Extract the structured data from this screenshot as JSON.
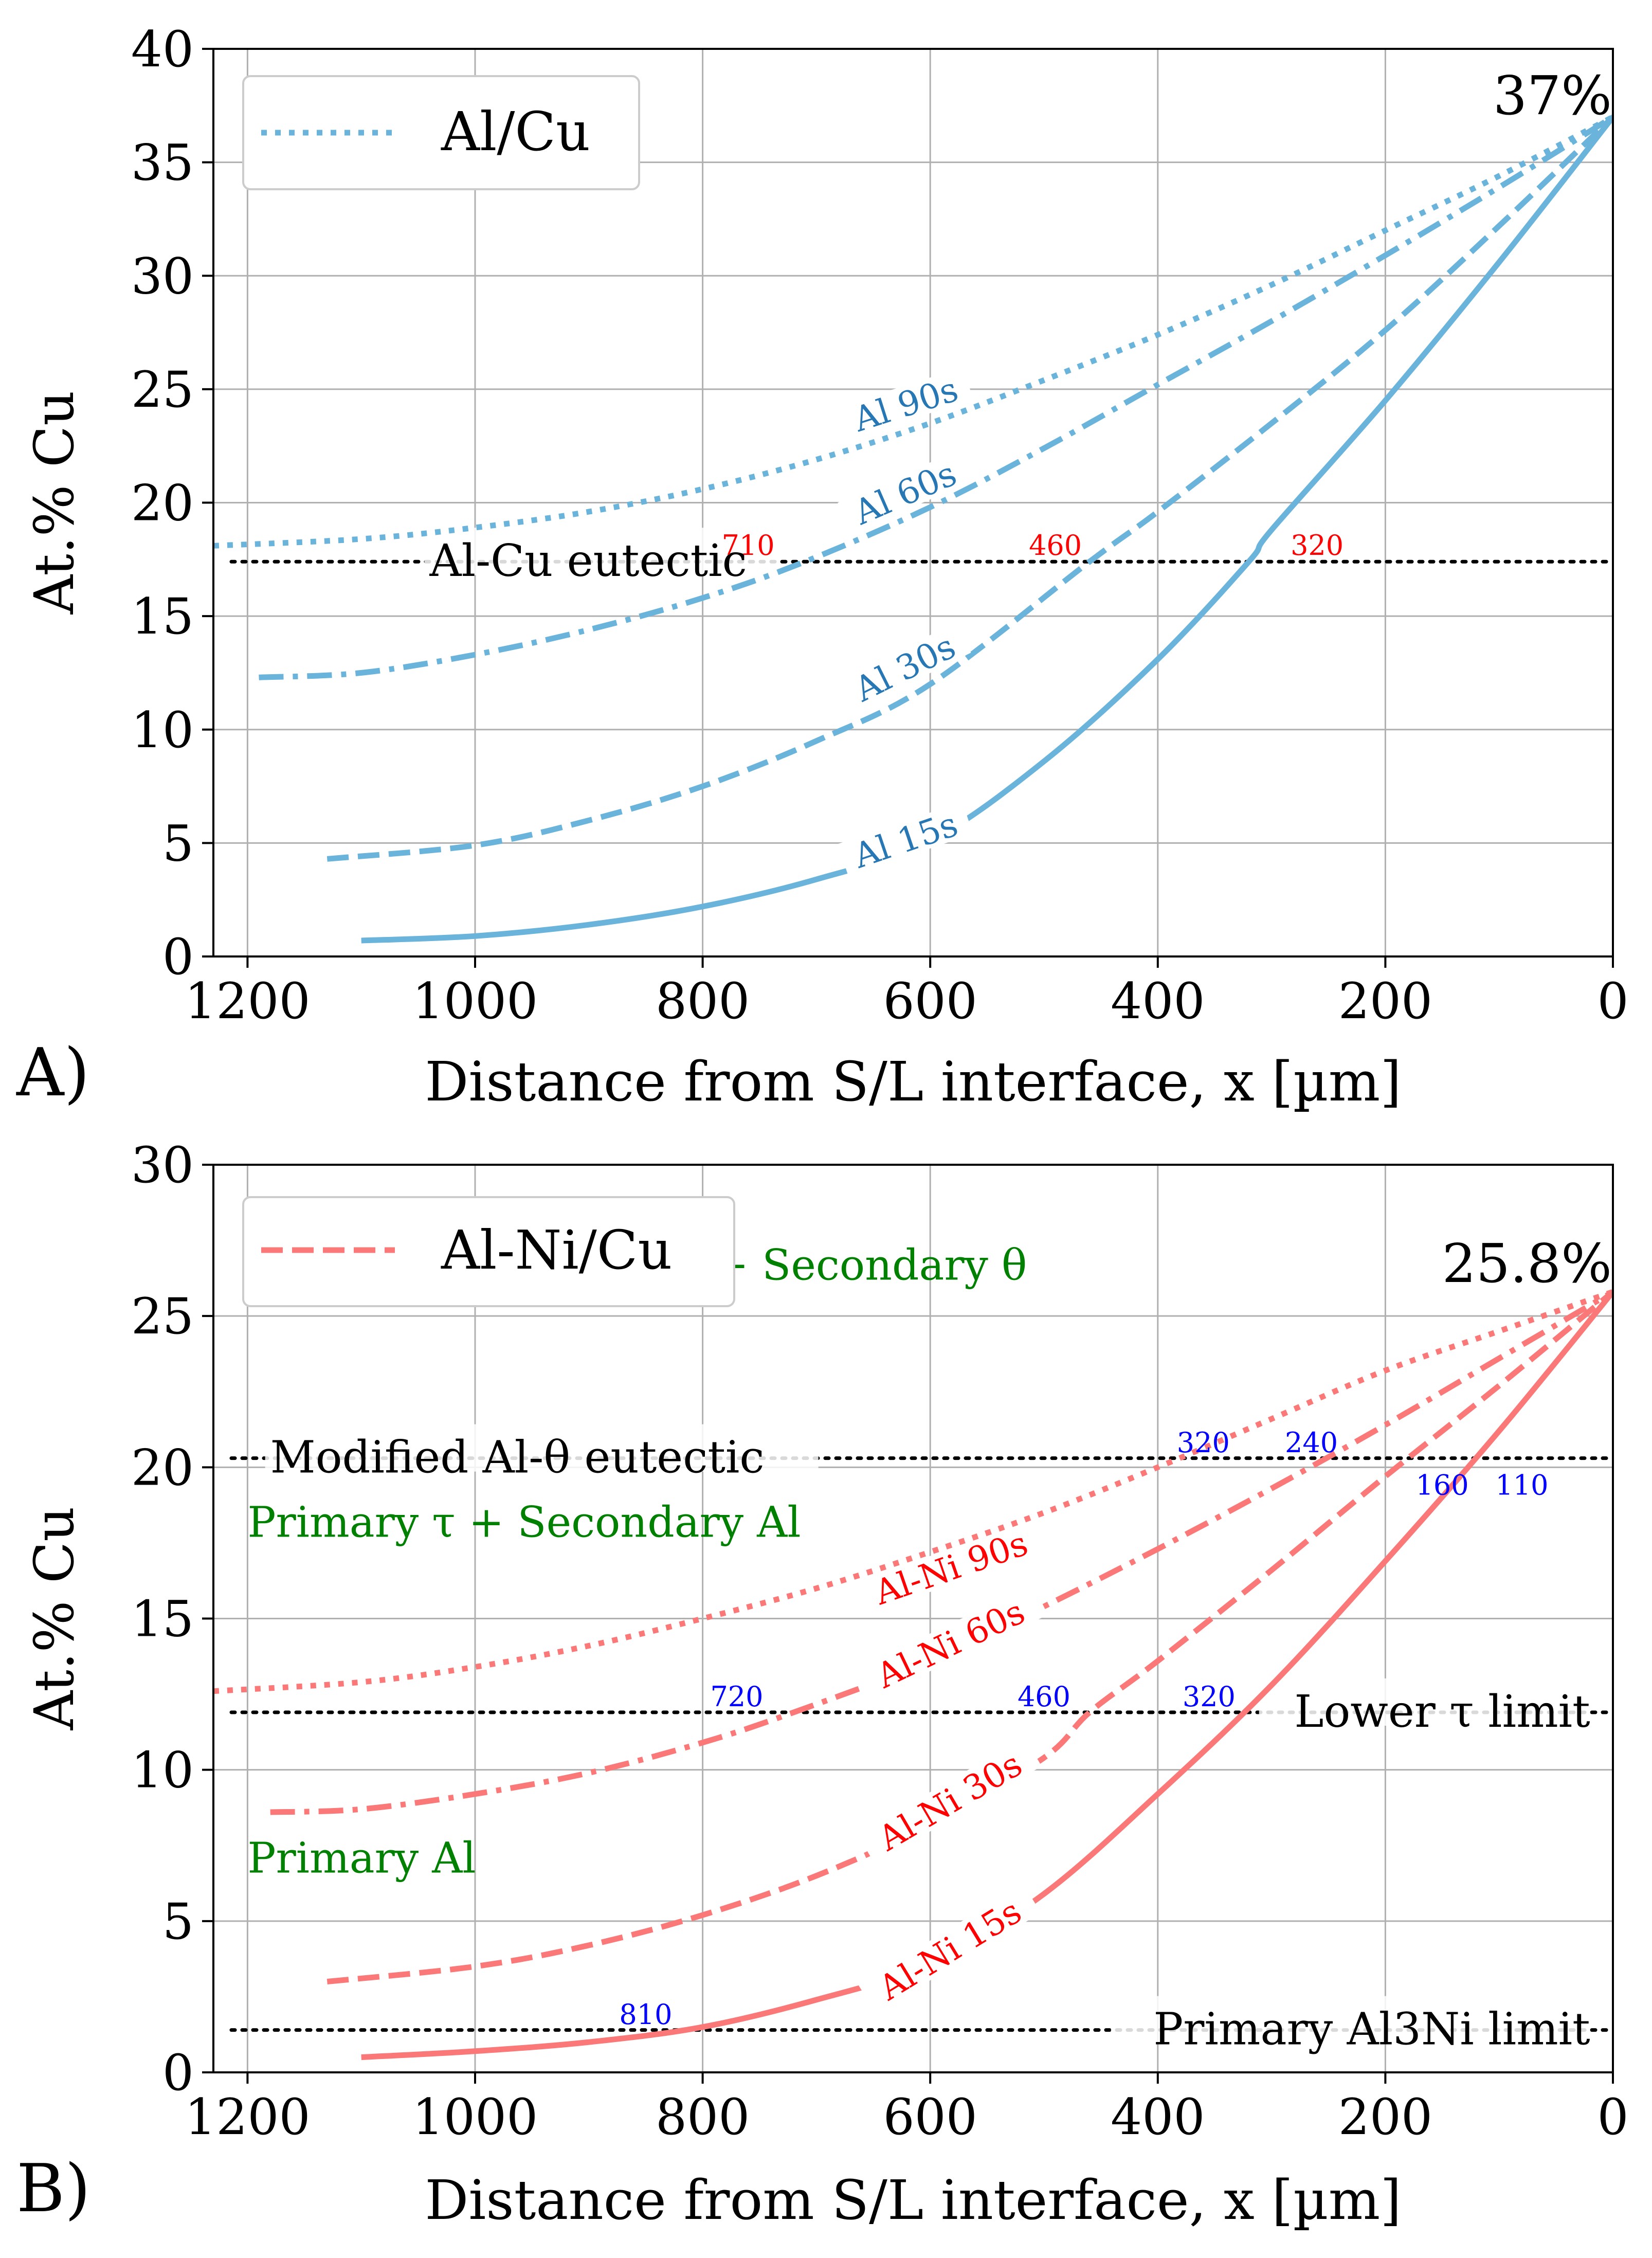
{
  "colors": {
    "a_curve": "#6ab4dc",
    "a_label": "#2677b4",
    "b_curve": "#fa7878",
    "b_label": "#ff0000",
    "cross_a": "#ff0000",
    "cross_b": "#0000ff",
    "region": "#008000"
  },
  "chart_data": [
    {
      "panel": "A)",
      "type": "line",
      "xlabel": "Distance from S/L interface, x [µm]",
      "ylabel": "At.% Cu",
      "xlim": [
        1230,
        0
      ],
      "ylim": [
        0,
        40
      ],
      "xticks": [
        1200,
        1000,
        800,
        600,
        400,
        200,
        0
      ],
      "yticks": [
        0,
        5,
        10,
        15,
        20,
        25,
        30,
        35,
        40
      ],
      "grid": true,
      "legend": {
        "label": "Al/Cu",
        "placement": "top-left",
        "style": "dotted"
      },
      "end_label": {
        "text": "37%",
        "x": 0,
        "y": 37
      },
      "series": [
        {
          "name": "Al 15s",
          "style": "solid",
          "x": [
            1100,
            1000,
            900,
            800,
            700,
            600,
            500,
            400,
            320,
            300,
            200,
            100,
            0
          ],
          "y": [
            0.7,
            0.9,
            1.4,
            2.2,
            3.4,
            5.1,
            8.6,
            13.1,
            17.4,
            18.8,
            24.5,
            30.6,
            37.0
          ],
          "label_x": 620,
          "label_y": 4.9
        },
        {
          "name": "Al 30s",
          "style": "dashed",
          "x": [
            1130,
            1000,
            900,
            800,
            700,
            600,
            460,
            400,
            300,
            200,
            100,
            0
          ],
          "y": [
            4.3,
            4.9,
            6.0,
            7.5,
            9.5,
            12.0,
            17.4,
            19.6,
            23.5,
            27.6,
            32.2,
            37.0
          ],
          "label_x": 620,
          "label_y": 12.5
        },
        {
          "name": "Al 60s",
          "style": "dashdot",
          "x": [
            1190,
            1100,
            1000,
            900,
            800,
            710,
            600,
            500,
            400,
            300,
            200,
            100,
            0
          ],
          "y": [
            12.3,
            12.5,
            13.3,
            14.4,
            15.8,
            17.4,
            19.8,
            22.4,
            25.2,
            28.0,
            30.9,
            33.9,
            37.0
          ],
          "label_x": 620,
          "label_y": 20.2
        },
        {
          "name": "Al 90s",
          "style": "dotted",
          "x": [
            1230,
            1100,
            1000,
            900,
            800,
            700,
            600,
            500,
            400,
            300,
            200,
            100,
            0
          ],
          "y": [
            18.1,
            18.4,
            18.9,
            19.6,
            20.6,
            21.9,
            23.5,
            25.4,
            27.4,
            29.6,
            32.0,
            34.4,
            37.0
          ],
          "label_x": 620,
          "label_y": 24.1
        }
      ],
      "ref_lines": [
        {
          "y": 17.4,
          "label": "Al-Cu eutectic",
          "label_x": 1040,
          "label_align": "start"
        }
      ],
      "crossings": [
        {
          "text": "710",
          "x": 760
        },
        {
          "text": "460",
          "x": 490
        },
        {
          "text": "320",
          "x": 260
        }
      ]
    },
    {
      "panel": "B)",
      "type": "line",
      "xlabel": "Distance from S/L interface, x [µm]",
      "ylabel": "At.% Cu",
      "xlim": [
        1230,
        0
      ],
      "ylim": [
        0,
        30
      ],
      "xticks": [
        1200,
        1000,
        800,
        600,
        400,
        200,
        0
      ],
      "yticks": [
        0,
        5,
        10,
        15,
        20,
        25,
        30
      ],
      "grid": true,
      "legend": {
        "label": "Al-Ni/Cu",
        "placement": "top-left",
        "style": "dashed"
      },
      "end_label": {
        "text": "25.8%",
        "x": 0,
        "y": 25.8
      },
      "series": [
        {
          "name": "Al-Ni 15s",
          "style": "solid",
          "x": [
            1100,
            1000,
            900,
            800,
            700,
            600,
            500,
            400,
            300,
            200,
            100,
            0
          ],
          "y": [
            0.5,
            0.7,
            1.0,
            1.5,
            2.4,
            3.6,
            5.9,
            9.2,
            12.8,
            16.9,
            21.2,
            25.8
          ],
          "label_x": 580,
          "label_y": 3.9
        },
        {
          "name": "Al-Ni 30s",
          "style": "dashed",
          "x": [
            1130,
            1000,
            900,
            800,
            700,
            600,
            500,
            460,
            400,
            300,
            200,
            100,
            0
          ],
          "y": [
            3.0,
            3.5,
            4.2,
            5.2,
            6.5,
            8.2,
            10.4,
            11.9,
            13.6,
            16.6,
            19.7,
            22.7,
            25.8
          ],
          "label_x": 580,
          "label_y": 8.8
        },
        {
          "name": "Al-Ni 60s",
          "style": "dashdot",
          "x": [
            1180,
            1100,
            1000,
            900,
            800,
            720,
            600,
            500,
            400,
            300,
            200,
            100,
            0
          ],
          "y": [
            8.6,
            8.7,
            9.2,
            9.9,
            10.9,
            11.9,
            13.6,
            15.4,
            17.3,
            19.3,
            21.4,
            23.6,
            25.8
          ],
          "label_x": 580,
          "label_y": 14.0
        },
        {
          "name": "Al-Ni 90s",
          "style": "dotted",
          "x": [
            1230,
            1100,
            1000,
            900,
            800,
            700,
            600,
            500,
            400,
            300,
            200,
            100,
            0
          ],
          "y": [
            12.6,
            12.9,
            13.4,
            14.1,
            15.0,
            16.0,
            17.2,
            18.5,
            20.0,
            21.6,
            23.2,
            24.5,
            25.8
          ],
          "label_x": 580,
          "label_y": 16.5
        }
      ],
      "ref_lines": [
        {
          "y": 20.3,
          "label": "Modified Al-θ eutectic",
          "label_x": 1180,
          "label_align": "start"
        },
        {
          "y": 11.9,
          "label": "Lower τ limit",
          "label_x": 20,
          "label_align": "end"
        },
        {
          "y": 1.4,
          "label": "Primary Al3Ni limit",
          "label_x": 20,
          "label_align": "end"
        }
      ],
      "crossings": [
        {
          "text": "320",
          "x": 360,
          "y": 20.5
        },
        {
          "text": "240",
          "x": 265,
          "y": 20.5
        },
        {
          "text": "160",
          "x": 150,
          "y": 19.1
        },
        {
          "text": "110",
          "x": 80,
          "y": 19.1
        },
        {
          "text": "720",
          "x": 770,
          "y": 12.1
        },
        {
          "text": "460",
          "x": 500,
          "y": 12.1
        },
        {
          "text": "320",
          "x": 355,
          "y": 12.1
        },
        {
          "text": "810",
          "x": 850,
          "y": 1.6
        }
      ],
      "regions": [
        {
          "text": "Primary τ + Secondary θ",
          "x": 750,
          "y": 26.2,
          "align": "middle"
        },
        {
          "text": "Primary τ + Secondary Al",
          "x": 1200,
          "y": 17.7,
          "align": "start"
        },
        {
          "text": "Primary Al",
          "x": 1200,
          "y": 6.6,
          "align": "start"
        }
      ]
    }
  ]
}
